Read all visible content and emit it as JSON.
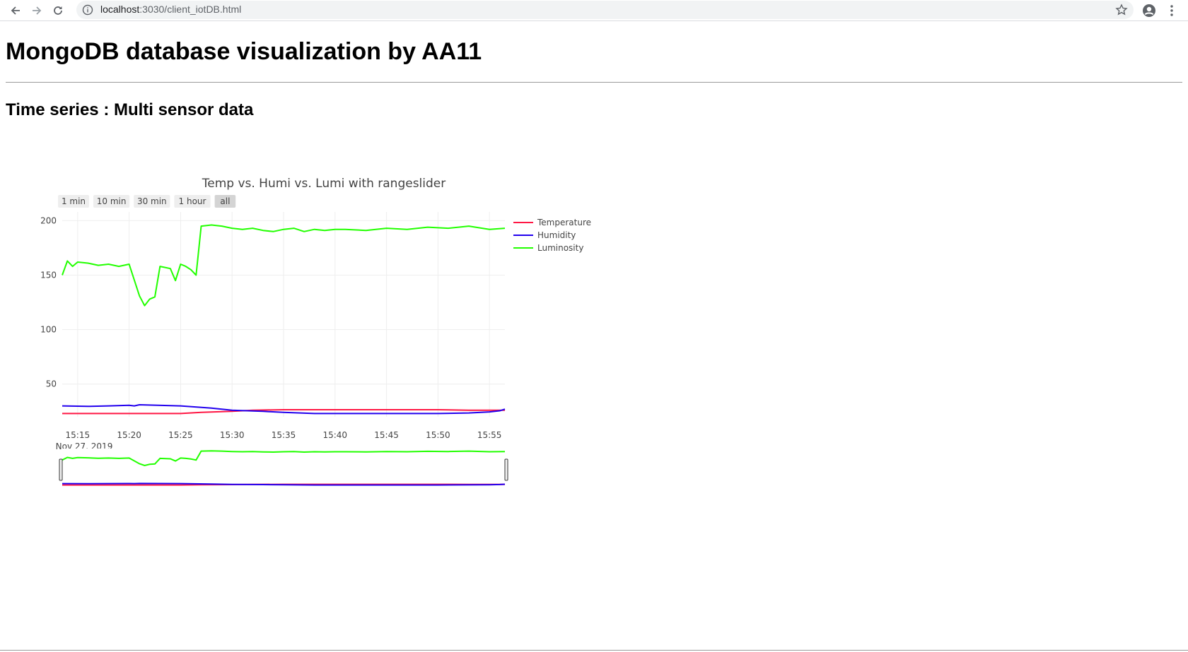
{
  "browser": {
    "url_host": "localhost",
    "url_rest": ":3030/client_iotDB.html"
  },
  "page": {
    "title": "MongoDB database visualization by AA11",
    "subtitle": "Time series : Multi sensor data"
  },
  "chart_data": {
    "type": "line",
    "title": "Temp vs. Humi vs. Lumi with rangeslider",
    "range_buttons": [
      "1 min",
      "10 min",
      "30 min",
      "1 hour",
      "all"
    ],
    "active_button": "all",
    "x_ticks": [
      "15:15",
      "15:20",
      "15:25",
      "15:30",
      "15:35",
      "15:40",
      "15:45",
      "15:50",
      "15:55"
    ],
    "x_date_label": "Nov 27, 2019",
    "xlim": [
      "2019-11-27 15:13:30",
      "2019-11-27 15:56:30"
    ],
    "y_ticks": [
      50,
      100,
      150,
      200
    ],
    "ylim": [
      20,
      208
    ],
    "grid": true,
    "legend_position": "top-right",
    "rangeslider": true,
    "series": [
      {
        "name": "Temperature",
        "color": "#ff1744",
        "x": [
          "15:13:30",
          "15:20",
          "15:25",
          "15:27",
          "15:30",
          "15:32",
          "15:35",
          "15:40",
          "15:45",
          "15:50",
          "15:53",
          "15:55",
          "15:56:30"
        ],
        "values": [
          23,
          23,
          23,
          24,
          25,
          26,
          26.5,
          26.5,
          26.5,
          26.5,
          26,
          26,
          26
        ]
      },
      {
        "name": "Humidity",
        "color": "#2200ee",
        "x": [
          "15:13:30",
          "15:16",
          "15:18",
          "15:20",
          "15:20:30",
          "15:21",
          "15:25",
          "15:28",
          "15:30",
          "15:33",
          "15:35",
          "15:38",
          "15:42",
          "15:45",
          "15:48",
          "15:50",
          "15:53",
          "15:55",
          "15:56",
          "15:56:30"
        ],
        "values": [
          30,
          29.5,
          30,
          30.5,
          30,
          31,
          30,
          28,
          26,
          25,
          24,
          23,
          23,
          23,
          23,
          23,
          23.5,
          24.5,
          25.5,
          27
        ]
      },
      {
        "name": "Luminosity",
        "color": "#22ff00",
        "x": [
          "15:13:30",
          "15:14",
          "15:14:30",
          "15:15",
          "15:16",
          "15:17",
          "15:18",
          "15:19",
          "15:20",
          "15:21",
          "15:21:30",
          "15:22",
          "15:22:30",
          "15:23",
          "15:24",
          "15:24:30",
          "15:25",
          "15:25:30",
          "15:26",
          "15:26:30",
          "15:27",
          "15:28",
          "15:29",
          "15:30",
          "15:31",
          "15:32",
          "15:33",
          "15:34",
          "15:35",
          "15:36",
          "15:37",
          "15:38",
          "15:39",
          "15:40",
          "15:41",
          "15:43",
          "15:45",
          "15:47",
          "15:49",
          "15:51",
          "15:53",
          "15:55",
          "15:56:30"
        ],
        "values": [
          150,
          163,
          158,
          162,
          161,
          159,
          160,
          158,
          160,
          131,
          122,
          128,
          130,
          158,
          156,
          145,
          160,
          158,
          155,
          150,
          195,
          196,
          195,
          193,
          192,
          193,
          191,
          190,
          192,
          193,
          190,
          192,
          191,
          192,
          192,
          191,
          193,
          192,
          194,
          193,
          195,
          192,
          193
        ]
      }
    ]
  }
}
